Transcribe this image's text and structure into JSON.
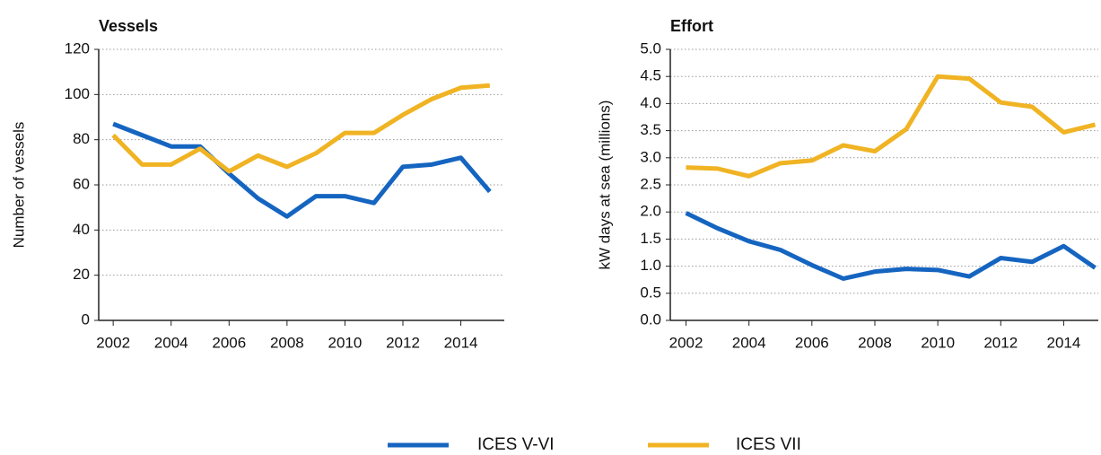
{
  "chart_data": [
    {
      "type": "line",
      "title": "Vessels",
      "y_label": "Number of vessels",
      "x": [
        2002,
        2003,
        2004,
        2005,
        2006,
        2007,
        2008,
        2009,
        2010,
        2011,
        2012,
        2013,
        2014,
        2015
      ],
      "series": [
        {
          "name": "ICES V-VI",
          "color": "#1565c0",
          "values": [
            87,
            82,
            77,
            77,
            65,
            54,
            46,
            55,
            55,
            52,
            68,
            69,
            72,
            57
          ]
        },
        {
          "name": "ICES VII",
          "color": "#f0b323",
          "values": [
            82,
            69,
            69,
            76,
            66,
            73,
            68,
            74,
            83,
            83,
            91,
            98,
            103,
            104
          ]
        }
      ],
      "xlim": [
        2001.5,
        2015.5
      ],
      "xticks": [
        2002,
        2004,
        2006,
        2008,
        2010,
        2012,
        2014
      ],
      "ylim": [
        0,
        120
      ],
      "yticks": [
        0,
        20,
        40,
        60,
        80,
        100,
        120
      ],
      "grid": true
    },
    {
      "type": "line",
      "title": "Effort",
      "y_label": "kW days at sea (millions)",
      "x": [
        2002,
        2003,
        2004,
        2005,
        2006,
        2007,
        2008,
        2009,
        2010,
        2011,
        2012,
        2013,
        2014,
        2015
      ],
      "series": [
        {
          "name": "ICES V-VI",
          "color": "#1565c0",
          "values": [
            1.98,
            1.7,
            1.46,
            1.3,
            1.02,
            0.77,
            0.9,
            0.95,
            0.93,
            0.81,
            1.15,
            1.08,
            1.37,
            0.97
          ]
        },
        {
          "name": "ICES VII",
          "color": "#f0b323",
          "values": [
            2.82,
            2.8,
            2.66,
            2.9,
            2.95,
            3.23,
            3.12,
            3.53,
            4.5,
            4.46,
            4.02,
            3.94,
            3.47,
            3.61
          ]
        }
      ],
      "xlim": [
        2001.5,
        2015.1
      ],
      "xticks": [
        2002,
        2004,
        2006,
        2008,
        2010,
        2012,
        2014
      ],
      "ylim": [
        0,
        5
      ],
      "yticks": [
        {
          "value": 0,
          "label": "0.0"
        },
        0.5,
        {
          "value": 1,
          "label": "1.0"
        },
        1.5,
        {
          "value": 2,
          "label": "2.0"
        },
        2.5,
        {
          "value": 3,
          "label": "3.0"
        },
        3.5,
        {
          "value": 4,
          "label": "4.0"
        },
        4.5,
        {
          "value": 5,
          "label": "5.0"
        }
      ],
      "grid": true
    }
  ]
}
